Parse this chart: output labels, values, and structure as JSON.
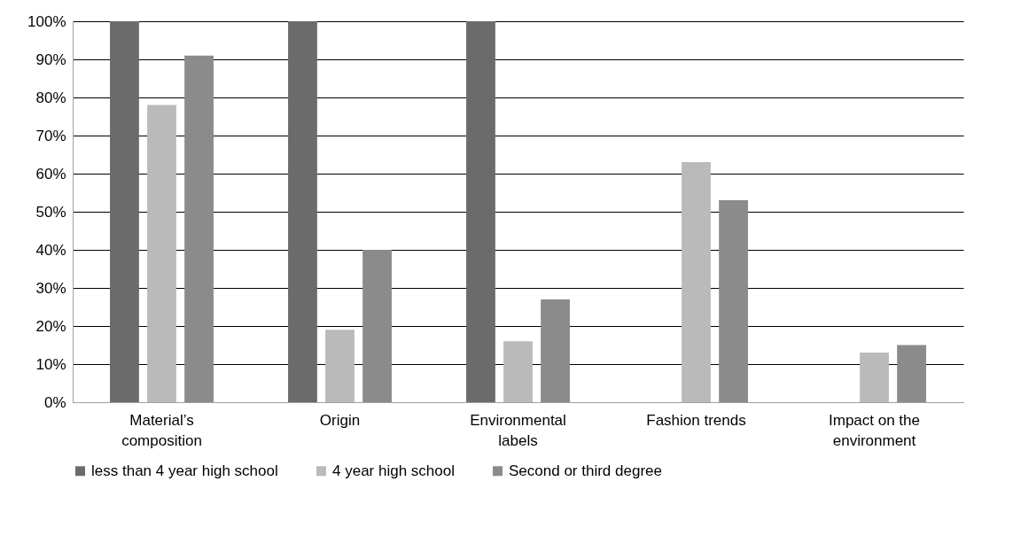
{
  "chart_data": {
    "type": "bar",
    "categories": [
      "Material’s composition",
      "Origin",
      "Environmental labels",
      "Fashion trends",
      "Impact on the environment"
    ],
    "series": [
      {
        "name": "less than 4 year high school",
        "color": "#6b6b6b",
        "values": [
          100,
          100,
          100,
          0,
          0
        ]
      },
      {
        "name": "4 year high school",
        "color": "#bababa",
        "values": [
          78,
          19,
          16,
          63,
          13
        ]
      },
      {
        "name": "Second or third degree",
        "color": "#8b8b8b",
        "values": [
          91,
          40,
          27,
          53,
          15
        ]
      }
    ],
    "ylim": [
      0,
      100
    ],
    "yticks": [
      {
        "value": 0,
        "label": "0%"
      },
      {
        "value": 10,
        "label": "10%"
      },
      {
        "value": 20,
        "label": "20%"
      },
      {
        "value": 30,
        "label": "30%"
      },
      {
        "value": 40,
        "label": "40%"
      },
      {
        "value": 50,
        "label": "50%"
      },
      {
        "value": 60,
        "label": "60%"
      },
      {
        "value": 70,
        "label": "70%"
      },
      {
        "value": 80,
        "label": "80%"
      },
      {
        "value": 90,
        "label": "90%"
      },
      {
        "value": 100,
        "label": "100%"
      }
    ],
    "grid": "y",
    "legend": "bottom"
  }
}
